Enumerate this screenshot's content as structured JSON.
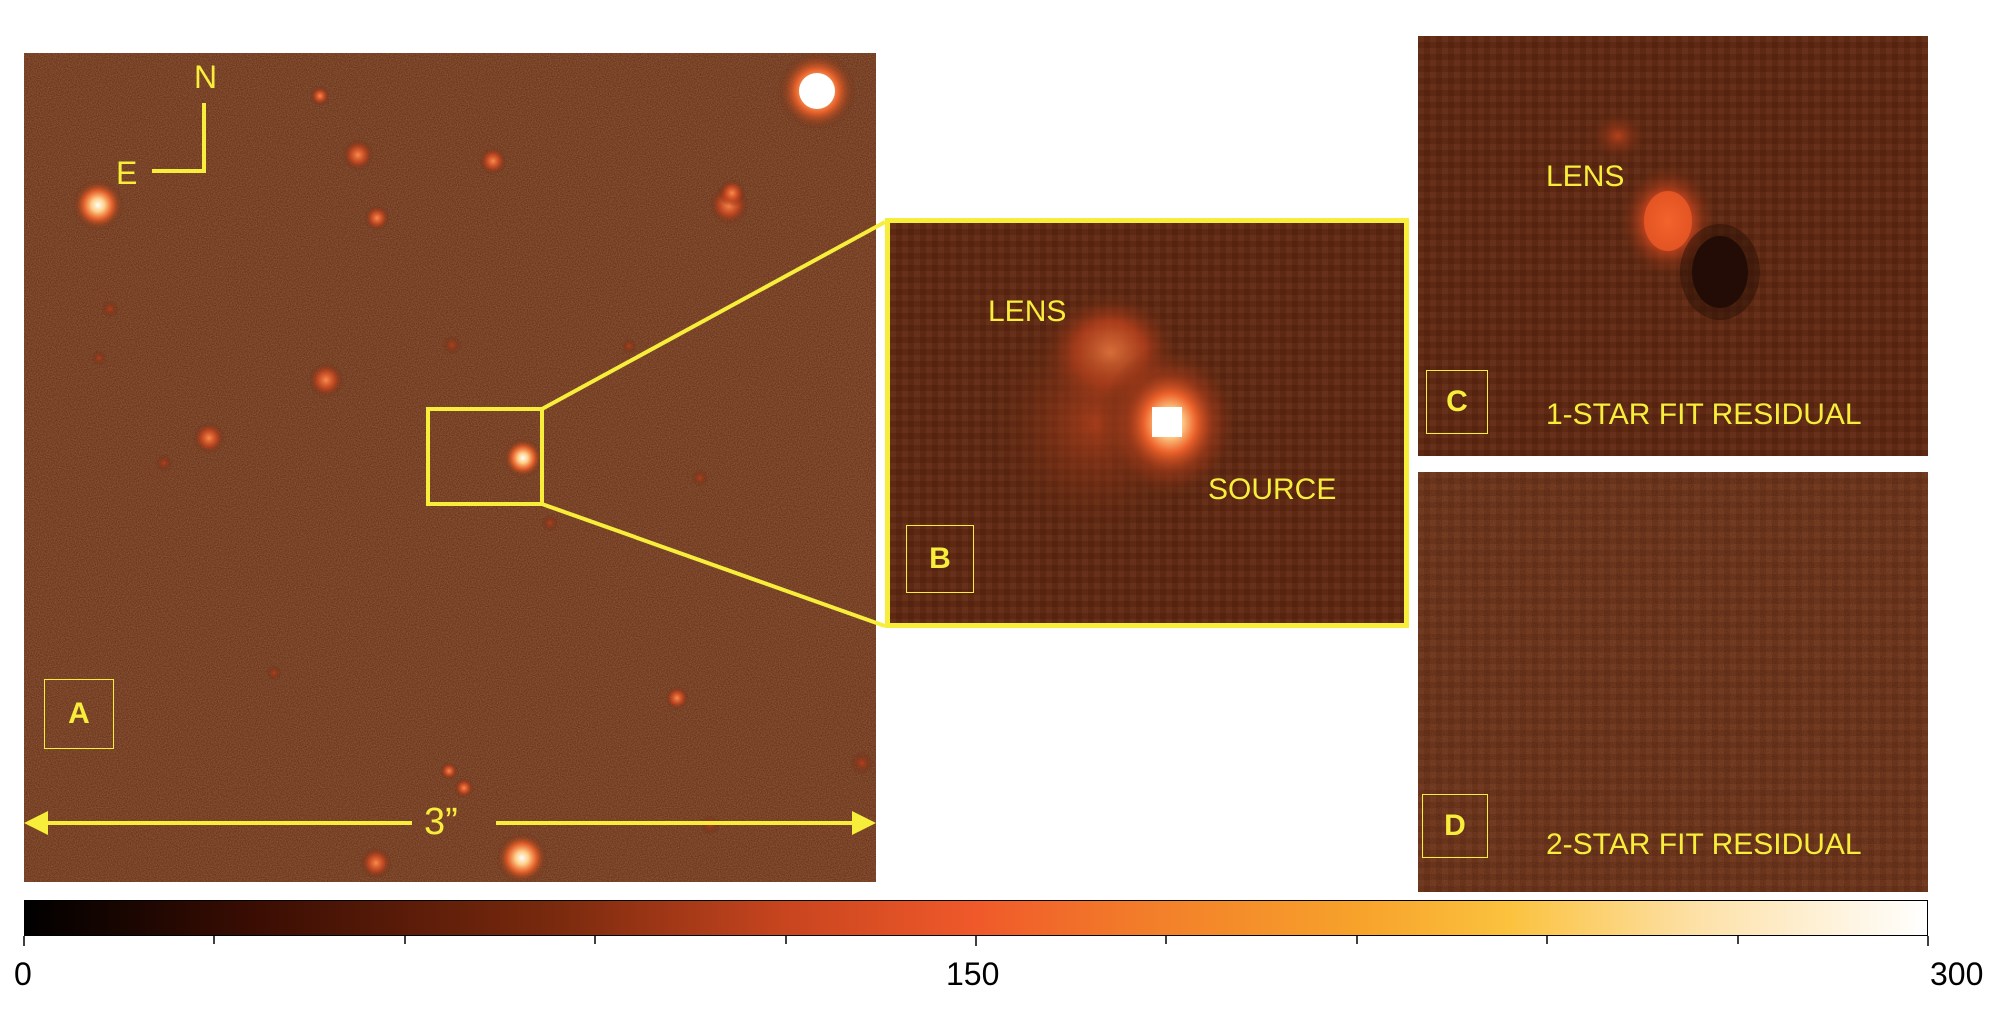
{
  "compass": {
    "north": "N",
    "east": "E"
  },
  "panels": {
    "a": {
      "tag": "A",
      "scale_label": "3”"
    },
    "b": {
      "tag": "B",
      "lens": "LENS",
      "source": "SOURCE"
    },
    "c": {
      "tag": "C",
      "lens": "LENS",
      "caption": "1-STAR FIT RESIDUAL"
    },
    "d": {
      "tag": "D",
      "caption": "2-STAR FIT RESIDUAL"
    }
  },
  "colorbar": {
    "min": 0,
    "max": 300,
    "ticks": [
      "0",
      "150",
      "300"
    ],
    "colormap": "gist_heat"
  },
  "colors": {
    "annotation": "#f6ee3a",
    "background_field": "#5a2610"
  }
}
